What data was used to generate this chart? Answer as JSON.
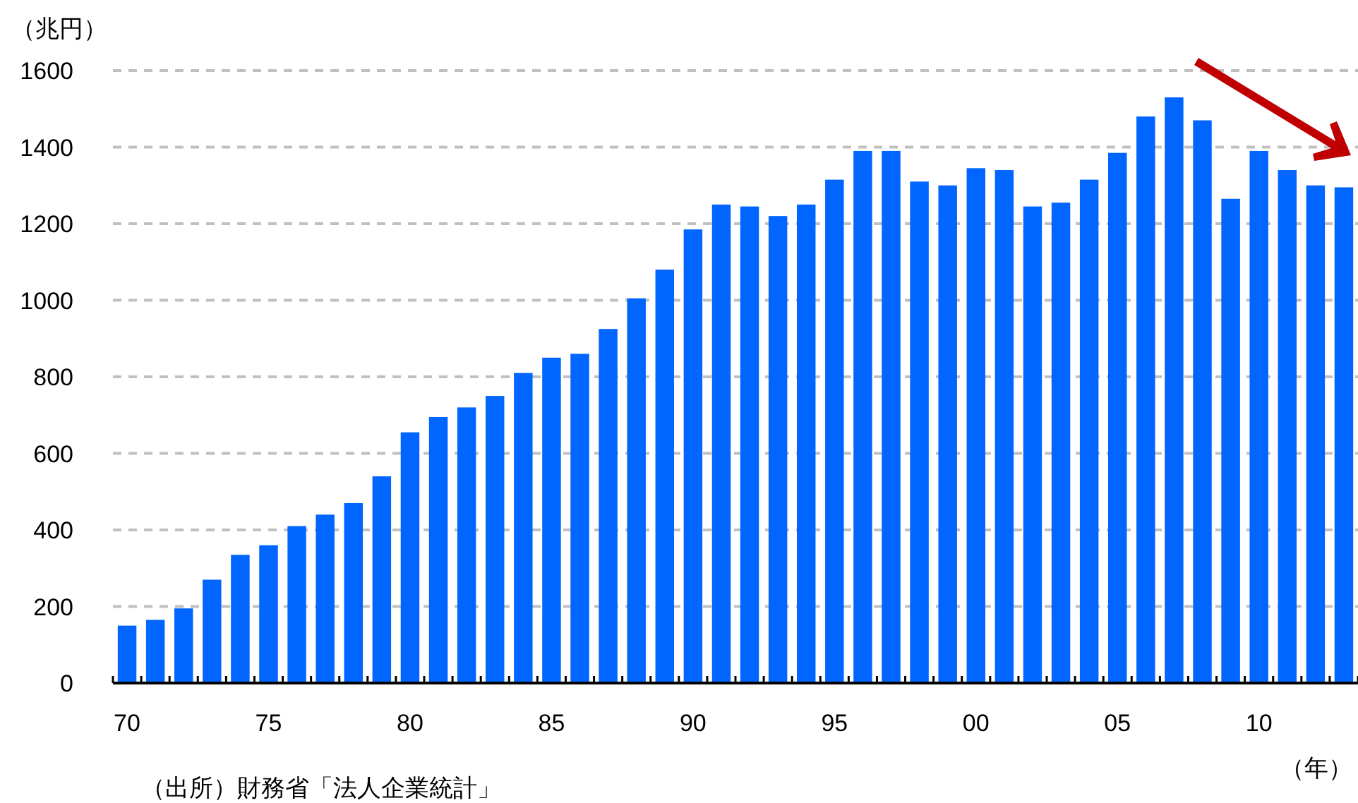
{
  "chart_data": {
    "type": "bar",
    "ylabel": "（兆円）",
    "xlabel": "（年）",
    "annotations": [
      "（出所）財務省「法人企業統計」"
    ],
    "categories": [
      "70",
      null,
      null,
      null,
      null,
      "75",
      null,
      null,
      null,
      null,
      "80",
      null,
      null,
      null,
      null,
      "85",
      null,
      null,
      null,
      null,
      "90",
      null,
      null,
      null,
      null,
      "95",
      null,
      null,
      null,
      null,
      "00",
      null,
      null,
      null,
      null,
      "05",
      null,
      null,
      null,
      null,
      "10",
      null,
      null,
      null
    ],
    "values": [
      150,
      165,
      195,
      270,
      335,
      360,
      410,
      440,
      470,
      540,
      655,
      695,
      720,
      750,
      810,
      850,
      860,
      925,
      1005,
      1080,
      1185,
      1250,
      1245,
      1220,
      1250,
      1315,
      1390,
      1390,
      1310,
      1300,
      1345,
      1340,
      1245,
      1255,
      1315,
      1385,
      1480,
      1530,
      1470,
      1265,
      1390,
      1340,
      1300,
      1295
    ],
    "color": "#0066ff",
    "ylim": [
      0,
      1600
    ],
    "yticks": [
      0,
      200,
      400,
      600,
      800,
      1000,
      1200,
      1400,
      1600
    ],
    "grid": "y"
  }
}
